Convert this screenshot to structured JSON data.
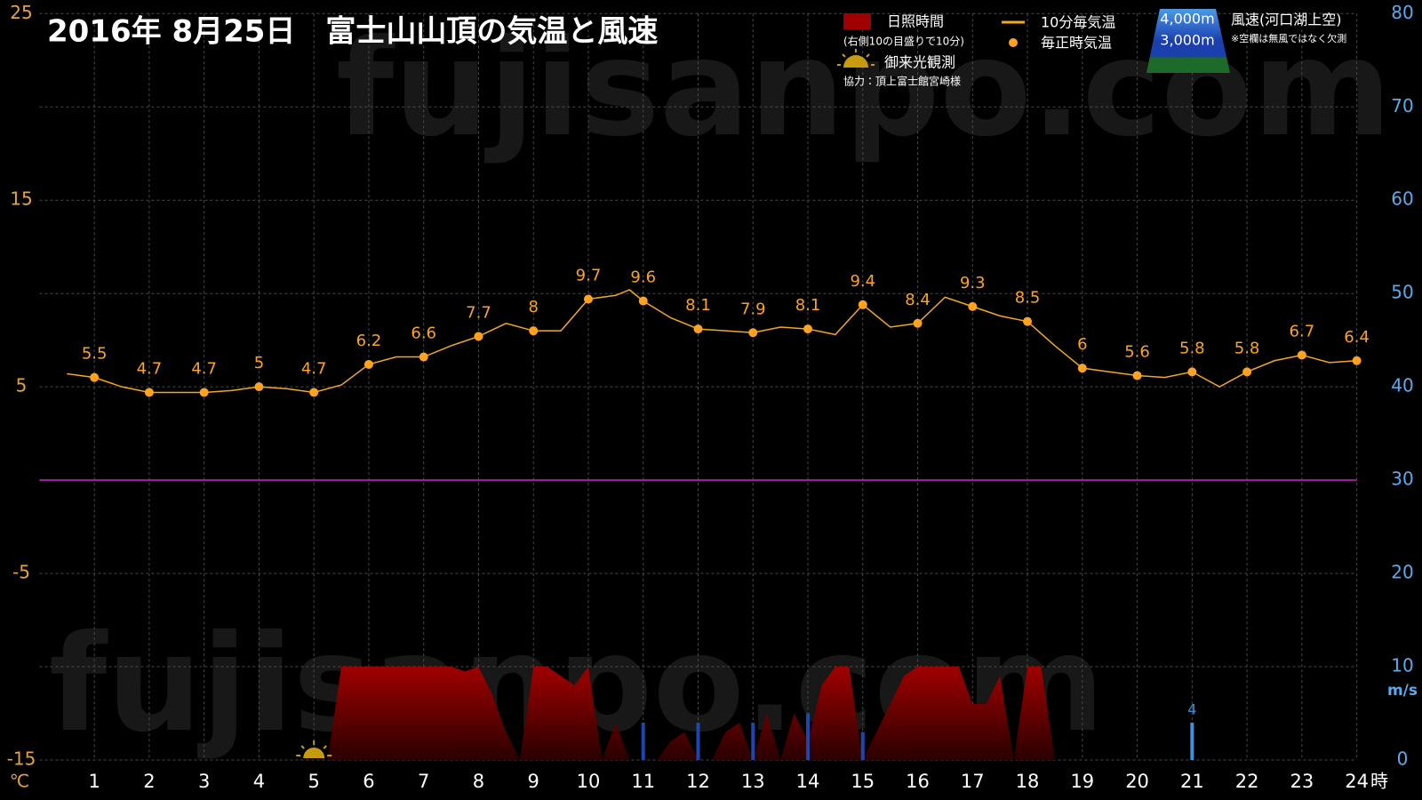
{
  "chart_data": {
    "type": "combo",
    "title": "2016年 8月25日　富士山山頂の気温と風速",
    "watermark": "fujisanpo.com",
    "credit": "協力：頂上富士館宮崎様",
    "x_unit": "時",
    "y_unit": "℃",
    "y2_unit": "m/s",
    "xlim": [
      0,
      24
    ],
    "xticks": [
      1,
      2,
      3,
      4,
      5,
      6,
      7,
      8,
      9,
      10,
      11,
      12,
      13,
      14,
      15,
      16,
      17,
      18,
      19,
      20,
      21,
      22,
      23,
      24
    ],
    "ylim": [
      -15,
      25
    ],
    "yticks": [
      -15,
      -5,
      5,
      15,
      25
    ],
    "y2lim": [
      0,
      80
    ],
    "y2ticks": [
      0,
      10,
      20,
      30,
      40,
      50,
      60,
      70,
      80
    ],
    "grid": true,
    "wind_legend_title": "風速(河口湖上空)",
    "wind_legend_note": "※空欄は無風ではなく欠測",
    "sunrise": {
      "name": "御来光観測",
      "x": 5
    },
    "series": [
      {
        "name": "日照時間",
        "type": "area",
        "axis": "y2",
        "color": "#9a0000",
        "note": "(右側10の目盛りで10分)",
        "x": [
          5.25,
          5.5,
          5.75,
          6,
          6.25,
          6.5,
          6.75,
          7,
          7.25,
          7.5,
          7.75,
          8,
          8.25,
          8.5,
          8.75,
          9,
          9.25,
          9.5,
          9.75,
          10,
          10.25,
          10.5,
          10.75,
          11,
          11.25,
          11.5,
          11.75,
          12,
          12.25,
          12.5,
          12.75,
          13,
          13.25,
          13.5,
          13.75,
          14,
          14.25,
          14.5,
          14.75,
          15,
          15.25,
          15.5,
          15.75,
          16,
          16.25,
          16.5,
          16.75,
          17,
          17.25,
          17.5,
          17.75,
          18,
          18.25,
          18.5
        ],
        "values": [
          0,
          10,
          10,
          10,
          10,
          10,
          10,
          10,
          10,
          10,
          9.5,
          10,
          7,
          3,
          0,
          10,
          10,
          9,
          8,
          10,
          0,
          4,
          0,
          0,
          0,
          2,
          3,
          0,
          0,
          3,
          4,
          0,
          5,
          0,
          5,
          2,
          8,
          10,
          10,
          0,
          3,
          6,
          9,
          10,
          10,
          10,
          10,
          6,
          6,
          9,
          0,
          10,
          10,
          0
        ]
      },
      {
        "name": "10分毎気温",
        "type": "line",
        "color": "#f5a623",
        "x": [
          0.5,
          1,
          1.5,
          2,
          2.5,
          3,
          3.5,
          4,
          4.5,
          5,
          5.5,
          6,
          6.5,
          7,
          7.5,
          8,
          8.5,
          9,
          9.5,
          10,
          10.5,
          10.75,
          11,
          11.5,
          12,
          12.5,
          13,
          13.5,
          14,
          14.5,
          15,
          15.5,
          16,
          16.5,
          17,
          17.5,
          18,
          18.5,
          19,
          19.5,
          20,
          20.5,
          21,
          21.5,
          22,
          22.5,
          23,
          23.5,
          24
        ],
        "values": [
          5.7,
          5.5,
          5.0,
          4.7,
          4.7,
          4.7,
          4.8,
          5.0,
          4.9,
          4.7,
          5.1,
          6.2,
          6.6,
          6.6,
          7.2,
          7.7,
          8.4,
          8.0,
          8.0,
          9.7,
          9.9,
          10.2,
          9.6,
          8.7,
          8.1,
          8.0,
          7.9,
          8.2,
          8.1,
          7.8,
          9.4,
          8.2,
          8.4,
          9.8,
          9.3,
          8.8,
          8.5,
          7.2,
          6.0,
          5.8,
          5.6,
          5.5,
          5.8,
          5.0,
          5.8,
          6.4,
          6.7,
          6.3,
          6.4
        ]
      },
      {
        "name": "毎正時気温",
        "type": "scatter",
        "color": "#ffa21f",
        "x": [
          1,
          2,
          3,
          4,
          5,
          6,
          7,
          8,
          9,
          10,
          11,
          12,
          13,
          14,
          15,
          16,
          17,
          18,
          19,
          20,
          21,
          22,
          23,
          24
        ],
        "values": [
          5.5,
          4.7,
          4.7,
          5,
          4.7,
          6.2,
          6.6,
          7.7,
          8,
          9.7,
          9.6,
          8.1,
          7.9,
          8.1,
          9.4,
          8.4,
          9.3,
          8.5,
          6,
          5.6,
          5.8,
          5.8,
          6.7,
          6.4
        ]
      },
      {
        "name": "4,000m",
        "type": "bar",
        "axis": "y2",
        "color": "#3f8fe0",
        "x": [
          21
        ],
        "values": [
          4
        ]
      },
      {
        "name": "3,000m",
        "type": "bar",
        "axis": "y2",
        "color": "#1c46b0",
        "x": [
          11,
          12,
          13,
          14,
          15
        ],
        "values": [
          4,
          4,
          4,
          5,
          3
        ]
      }
    ]
  }
}
